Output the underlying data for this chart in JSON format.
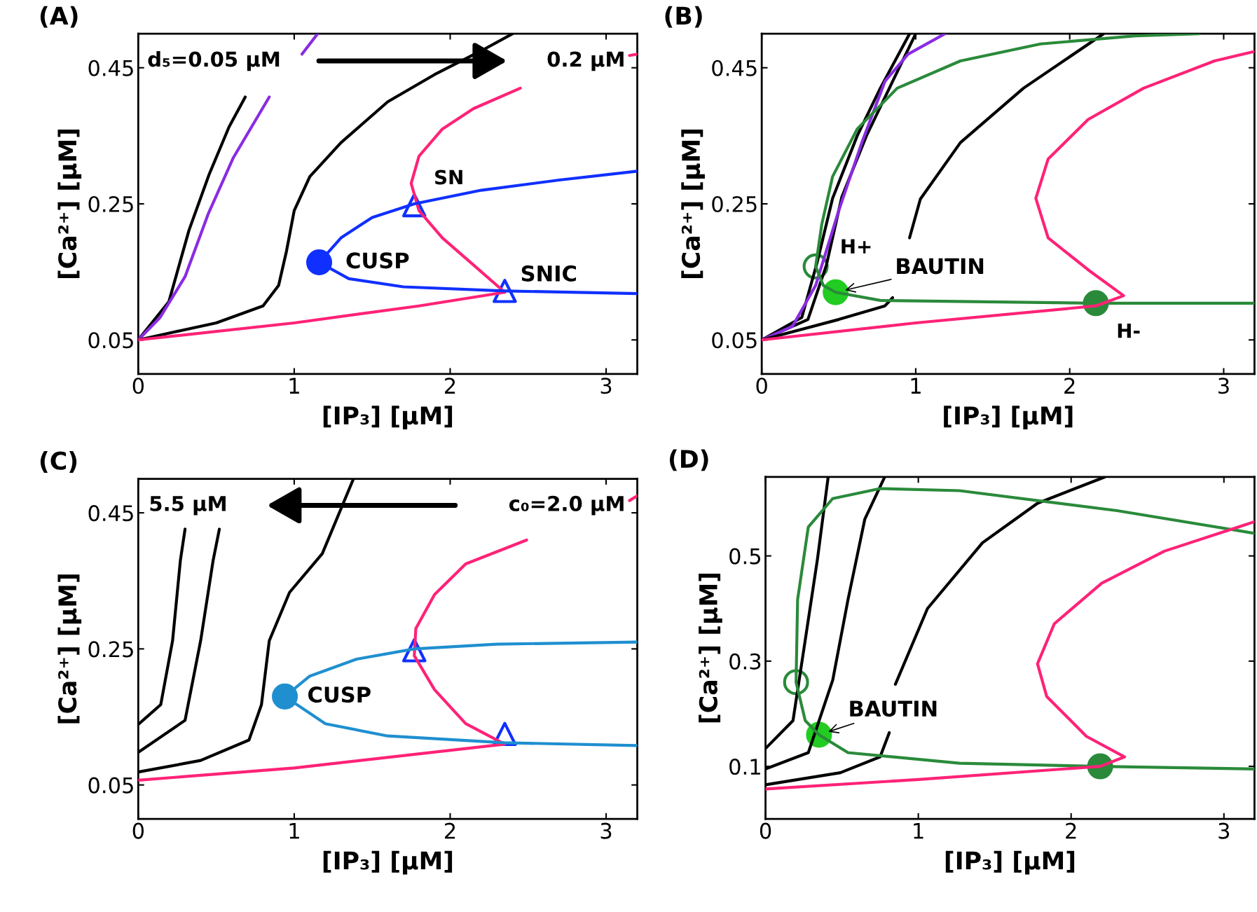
{
  "chart_data": [
    {
      "type": "line",
      "title": "(A)",
      "xlabel": "[IP₃] [μM]",
      "ylabel": "[Ca²⁺] [μM]",
      "xlim": [
        0,
        3.2
      ],
      "ylim": [
        0,
        0.5
      ],
      "xticks": [
        0,
        1,
        2,
        3
      ],
      "yticks": [
        0.05,
        0.25,
        0.45
      ],
      "grid": false,
      "annotations": [
        "d₅=0.05 μM",
        "0.2 μM",
        {
          "text": "SN",
          "x": 1.77,
          "y": 0.248
        },
        {
          "text": "CUSP",
          "x": 1.16,
          "y": 0.164
        },
        {
          "text": "SNIC",
          "x": 2.35,
          "y": 0.122
        }
      ],
      "series": [
        {
          "type": "line",
          "color": "#000000",
          "x": [
            0,
            0.196,
            0.325,
            0.454,
            0.582,
            0.686
          ],
          "values": [
            0.05,
            0.106,
            0.211,
            0.293,
            0.363,
            0.407
          ]
        },
        {
          "type": "line",
          "color": "#8a2be2",
          "x": [
            0,
            0.14,
            0.3,
            0.45,
            0.61,
            0.84,
            0.9,
            1.05,
            1.15
          ],
          "values": [
            0.05,
            0.083,
            0.143,
            0.236,
            0.318,
            0.407,
            null,
            0.47,
            0.5
          ]
        },
        {
          "type": "line",
          "color": "#000000",
          "x": [
            0,
            0.5,
            0.8,
            0.9,
            0.95,
            1.0,
            1.1,
            1.3,
            1.6,
            1.9,
            2.2,
            2.4
          ],
          "values": [
            0.05,
            0.075,
            0.1,
            0.13,
            0.18,
            0.24,
            0.29,
            0.34,
            0.4,
            0.44,
            0.475,
            0.5
          ]
        },
        {
          "type": "line",
          "color": "#ff2277",
          "x": [
            0,
            1.0,
            1.8,
            2.35,
            2.15,
            1.95,
            1.8,
            1.75,
            1.8,
            1.95,
            2.15,
            2.45,
            2.5,
            3.15,
            3.2
          ],
          "values": [
            0.05,
            0.075,
            0.1,
            0.12,
            0.16,
            0.2,
            0.24,
            0.28,
            0.32,
            0.36,
            0.39,
            0.42,
            null,
            0.468,
            0.47
          ]
        },
        {
          "type": "line",
          "color": "#1030ff",
          "x": [
            3.2,
            2.35,
            1.7,
            1.35,
            1.16,
            1.3,
            1.5,
            1.77,
            2.2,
            2.7,
            3.2
          ],
          "values": [
            0.118,
            0.122,
            0.128,
            0.14,
            0.164,
            0.2,
            0.23,
            0.25,
            0.27,
            0.285,
            0.298
          ]
        },
        {
          "type": "scatter",
          "color": "#1030ff",
          "marker": "circle",
          "x": [
            1.16
          ],
          "values": [
            0.164
          ]
        },
        {
          "type": "scatter",
          "color": "#1030ff",
          "colors": [
            "#ffffff",
            "#ffffff"
          ],
          "marker": "triangle",
          "x": [
            1.77,
            2.35
          ],
          "values": [
            0.248,
            0.122
          ]
        }
      ]
    },
    {
      "type": "line",
      "title": "(B)",
      "xlabel": "[IP₃] [μM]",
      "ylabel": "[Ca²⁺] [μM]",
      "xlim": [
        0,
        3.2
      ],
      "ylim": [
        0,
        0.5
      ],
      "xticks": [
        0,
        1,
        2,
        3
      ],
      "yticks": [
        0.05,
        0.25,
        0.45
      ],
      "grid": false,
      "annotations": [
        {
          "text": "H+",
          "x": 0.35,
          "y": 0.158
        },
        {
          "text": "BAUTIN",
          "x": 0.48,
          "y": 0.12
        },
        {
          "text": "H-",
          "x": 2.17,
          "y": 0.104
        }
      ],
      "series": [
        {
          "type": "line",
          "color": "#000000",
          "x": [
            0,
            0.26,
            0.36,
            0.46,
            0.62,
            0.77,
            0.96
          ],
          "values": [
            0.05,
            0.083,
            0.164,
            0.258,
            0.35,
            0.42,
            0.5
          ]
        },
        {
          "type": "line",
          "color": "#000000",
          "x": [
            0,
            0.3,
            0.42,
            0.52,
            0.68,
            0.85,
            1.0
          ],
          "values": [
            0.05,
            0.08,
            0.16,
            0.26,
            0.35,
            0.43,
            0.5
          ]
        },
        {
          "type": "line",
          "color": "#8a2be2",
          "x": [
            0,
            0.2,
            0.35,
            0.5,
            0.65,
            0.8,
            0.95,
            1.19
          ],
          "values": [
            0.05,
            0.07,
            0.13,
            0.24,
            0.34,
            0.43,
            0.47,
            0.5
          ]
        },
        {
          "type": "line",
          "color": "#000000",
          "x": [
            0,
            0.5,
            0.8,
            0.85,
            0.9,
            0.96,
            1.03,
            1.29,
            1.7,
            2.22
          ],
          "values": [
            0.05,
            0.08,
            0.1,
            0.112,
            null,
            0.2,
            0.257,
            0.34,
            0.42,
            0.5
          ]
        },
        {
          "type": "line",
          "color": "#2a8a3a",
          "x": [
            2.84,
            2.43,
            1.81,
            1.29,
            0.88,
            0.62,
            0.46,
            0.39,
            0.35,
            0.4,
            0.48,
            0.77,
            2.17,
            3.2
          ],
          "values": [
            0.5,
            0.497,
            0.485,
            0.46,
            0.42,
            0.36,
            0.29,
            0.22,
            0.158,
            0.13,
            0.12,
            0.108,
            0.104,
            0.104
          ]
        },
        {
          "type": "line",
          "color": "#ff2277",
          "x": [
            0,
            1.0,
            2.17,
            2.35,
            2.12,
            1.86,
            1.78,
            1.86,
            2.12,
            2.48,
            2.94,
            3.2
          ],
          "values": [
            0.05,
            0.075,
            0.1,
            0.115,
            0.153,
            0.2,
            0.258,
            0.316,
            0.374,
            0.42,
            0.46,
            0.474
          ]
        },
        {
          "type": "scatter",
          "color": "#2a8a3a",
          "colors": [
            "#ffffff"
          ],
          "marker": "circle",
          "x": [
            0.35
          ],
          "values": [
            0.158
          ]
        },
        {
          "type": "scatter",
          "color": "#22cc22",
          "marker": "circle",
          "x": [
            0.48
          ],
          "values": [
            0.12
          ]
        },
        {
          "type": "scatter",
          "color": "#2a8a3a",
          "marker": "circle",
          "x": [
            2.17
          ],
          "values": [
            0.104
          ]
        }
      ]
    },
    {
      "type": "line",
      "title": "(C)",
      "xlabel": "[IP₃] [μM]",
      "ylabel": "[Ca²⁺] [μM]",
      "xlim": [
        0,
        3.2
      ],
      "ylim": [
        0,
        0.5
      ],
      "xticks": [
        0,
        1,
        2,
        3
      ],
      "yticks": [
        0.05,
        0.25,
        0.45
      ],
      "grid": false,
      "annotations": [
        "5.5 μM",
        "c₀=2.0 μM",
        {
          "text": "CUSP",
          "x": 0.94,
          "y": 0.18
        }
      ],
      "series": [
        {
          "type": "line",
          "color": "#000000",
          "x": [
            0,
            0.144,
            0.22,
            0.27,
            0.3
          ],
          "values": [
            0.139,
            0.168,
            0.262,
            0.38,
            0.426
          ]
        },
        {
          "type": "line",
          "color": "#000000",
          "x": [
            0,
            0.3,
            0.4,
            0.48,
            0.52
          ],
          "values": [
            0.098,
            0.145,
            0.262,
            0.38,
            0.426
          ]
        },
        {
          "type": "line",
          "color": "#000000",
          "x": [
            0,
            0.4,
            0.71,
            0.79,
            0.84,
            0.97,
            1.18,
            1.38
          ],
          "values": [
            0.069,
            0.086,
            0.116,
            0.168,
            0.262,
            0.333,
            0.39,
            0.5
          ]
        },
        {
          "type": "line",
          "color": "#ff2277",
          "x": [
            0,
            1.0,
            2.35,
            2.1,
            1.9,
            1.77,
            1.78,
            1.9,
            2.1,
            2.49,
            2.8,
            3.15,
            3.2
          ],
          "values": [
            0.057,
            0.075,
            0.11,
            0.14,
            0.19,
            0.24,
            0.28,
            0.33,
            0.375,
            0.41,
            null,
            0.468,
            0.475
          ]
        },
        {
          "type": "line",
          "color": "#1f8fd0",
          "x": [
            3.2,
            2.35,
            1.6,
            1.2,
            0.94,
            1.1,
            1.4,
            1.77,
            2.3,
            3.2
          ],
          "values": [
            0.108,
            0.112,
            0.122,
            0.14,
            0.18,
            0.21,
            0.235,
            0.25,
            0.257,
            0.26
          ]
        },
        {
          "type": "scatter",
          "color": "#1f8fd0",
          "marker": "circle",
          "x": [
            0.94
          ],
          "values": [
            0.18
          ]
        },
        {
          "type": "scatter",
          "color": "#1030ff",
          "colors": [
            "#ffffff",
            "#ffffff"
          ],
          "marker": "triangle",
          "x": [
            1.77,
            2.35
          ],
          "values": [
            0.248,
            0.125
          ]
        }
      ]
    },
    {
      "type": "line",
      "title": "(D)",
      "xlabel": "[IP₃] [μM]",
      "ylabel": "[Ca²⁺] [μM]",
      "xlim": [
        0,
        3.2
      ],
      "ylim": [
        0,
        0.65
      ],
      "xticks": [
        0,
        1,
        2,
        3
      ],
      "yticks": [
        0.1,
        0.3,
        0.5
      ],
      "grid": false,
      "annotations": [
        {
          "text": "BAUTIN",
          "x": 0.35,
          "y": 0.16
        }
      ],
      "series": [
        {
          "type": "line",
          "color": "#000000",
          "x": [
            0,
            0.18,
            0.26,
            0.34,
            0.41
          ],
          "values": [
            0.134,
            0.187,
            0.34,
            0.494,
            0.65
          ]
        },
        {
          "type": "line",
          "color": "#000000",
          "x": [
            0,
            0.28,
            0.44,
            0.54,
            0.65,
            0.78
          ],
          "values": [
            0.095,
            0.126,
            0.264,
            0.417,
            0.57,
            0.65
          ]
        },
        {
          "type": "line",
          "color": "#000000",
          "x": [
            0,
            0.49,
            0.75,
            0.81,
            0.83,
            0.85,
            1.06,
            1.42,
            1.78,
            2.22
          ],
          "values": [
            0.065,
            0.088,
            0.118,
            0.164,
            null,
            0.256,
            0.4,
            0.525,
            0.6,
            0.65
          ]
        },
        {
          "type": "line",
          "color": "#2a8a3a",
          "x": [
            3.2,
            2.3,
            1.27,
            0.75,
            0.44,
            0.28,
            0.21,
            0.2,
            0.26,
            0.35,
            0.54,
            1.27,
            2.19,
            3.2
          ],
          "values": [
            0.543,
            0.586,
            0.624,
            0.628,
            0.609,
            0.555,
            0.417,
            0.26,
            0.187,
            0.16,
            0.126,
            0.106,
            0.1,
            0.095
          ]
        },
        {
          "type": "line",
          "color": "#ff2277",
          "x": [
            0,
            1.0,
            2.19,
            2.35,
            2.1,
            1.84,
            1.78,
            1.89,
            2.2,
            2.61,
            3.2
          ],
          "values": [
            0.057,
            0.075,
            0.1,
            0.118,
            0.157,
            0.233,
            0.295,
            0.371,
            0.448,
            0.509,
            0.565
          ]
        },
        {
          "type": "scatter",
          "color": "#2a8a3a",
          "colors": [
            "#ffffff"
          ],
          "marker": "circle",
          "x": [
            0.2
          ],
          "values": [
            0.26
          ]
        },
        {
          "type": "scatter",
          "color": "#22cc22",
          "marker": "circle",
          "x": [
            0.35
          ],
          "values": [
            0.16
          ]
        },
        {
          "type": "scatter",
          "color": "#2a8a3a",
          "marker": "circle",
          "x": [
            2.19
          ],
          "values": [
            0.1
          ]
        }
      ]
    }
  ]
}
